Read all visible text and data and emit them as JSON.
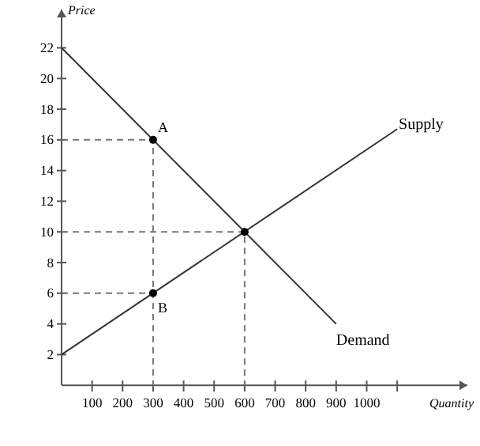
{
  "chart_data": {
    "type": "line",
    "xlabel": "Quantity",
    "ylabel": "Price",
    "xlim": [
      0,
      1330
    ],
    "ylim": [
      0,
      24.5
    ],
    "xticks": [
      100,
      200,
      300,
      400,
      500,
      600,
      700,
      800,
      900,
      1000,
      {
        "value": 1100,
        "label": null
      }
    ],
    "yticks": [
      2,
      4,
      6,
      8,
      10,
      12,
      14,
      16,
      18,
      20,
      22
    ],
    "grid": false,
    "legend": false,
    "series": [
      {
        "line_style": "dashed",
        "color": "#777777",
        "x": [
          0,
          300,
          300
        ],
        "values": [
          16,
          16,
          0
        ]
      },
      {
        "line_style": "dashed",
        "color": "#777777",
        "x": [
          0,
          300
        ],
        "values": [
          6,
          6
        ]
      },
      {
        "line_style": "dashed",
        "color": "#777777",
        "x": [
          0,
          600,
          600
        ],
        "values": [
          10,
          10,
          0
        ]
      },
      {
        "line_style": "solid",
        "name": "Supply",
        "color": "#333333",
        "x": [
          0,
          1100
        ],
        "values": [
          2,
          16.7
        ]
      },
      {
        "line_style": "solid",
        "name": "Demand",
        "color": "#333333",
        "x": [
          0,
          900
        ],
        "values": [
          22,
          4
        ]
      },
      {
        "type": "scatter",
        "marker": "circle",
        "color": "#000000",
        "x": [
          300,
          300,
          600
        ],
        "values": [
          16,
          6,
          10
        ]
      }
    ],
    "annotations": [
      {
        "text": "A",
        "x": 300,
        "y": 16
      },
      {
        "text": "B",
        "x": 300,
        "y": 6
      }
    ]
  }
}
